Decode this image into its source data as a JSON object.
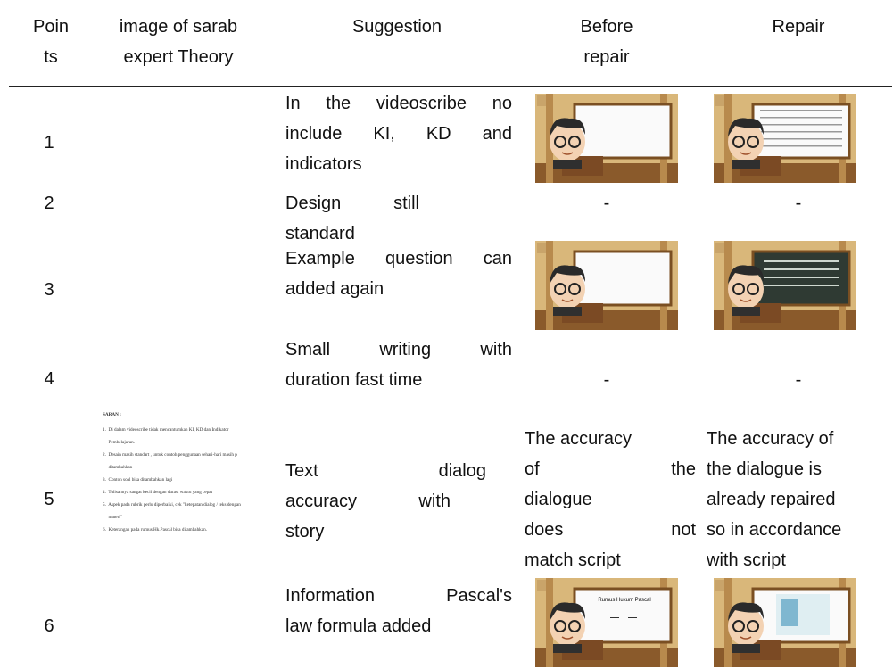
{
  "header": {
    "columns": [
      [
        "Poin",
        "ts"
      ],
      [
        "image of sarab",
        "expert Theory"
      ],
      [
        "Suggestion"
      ],
      [
        "Before",
        "repair"
      ],
      [
        "Repair"
      ]
    ]
  },
  "rows": [
    {
      "point": "1",
      "suggestion": [
        "In the videoscribe no",
        "include KI, KD and",
        "indicators"
      ]
    },
    {
      "point": "2",
      "suggestion": [
        "Design still",
        "standard"
      ],
      "before": [
        "-"
      ],
      "repair": [
        "-"
      ]
    },
    {
      "point": "3",
      "suggestion": [
        "Example question can",
        "added again"
      ]
    },
    {
      "point": "4",
      "suggestion": [
        "Small writing with",
        "duration fast time"
      ],
      "before": [
        "-"
      ],
      "repair": [
        "-"
      ]
    },
    {
      "point": "5",
      "suggestion": [
        "Text dialog",
        "accuracy with",
        "story"
      ],
      "before": [
        "The accuracy",
        "of the",
        "dialogue",
        "does not",
        "match script"
      ],
      "repair": [
        "The accuracy of",
        "the dialogue is",
        "already repaired",
        "so in accordance",
        "with script"
      ]
    },
    {
      "point": "6",
      "suggestion": [
        "Information Pascal's",
        "law formula added"
      ]
    }
  ],
  "expert_note": {
    "title": "SARAN :",
    "items": [
      "1.  Di dalam videoscribe tidak mencantumkan KI, KD dan Indikator",
      "     Pembelajaran.",
      "2.  Desain masih standart , untuk contoh penggunaan sehari-hari masih p",
      "     ditambahkan",
      "3.  Contoh soal bisa ditambahkan lagi",
      "4.  Tulisannya sangat kecil dengan durasi waktu yang cepat",
      "5.  Aspek pada rubrik perlu diperbaiki, cek \"ketepatan dialog / teks dengan",
      "     materi\"",
      "6.  Keterangan pada rumus Hk.Pascal bisa ditambahkan."
    ]
  },
  "thumbnail_caption": "Rumus Hukum Pascal"
}
